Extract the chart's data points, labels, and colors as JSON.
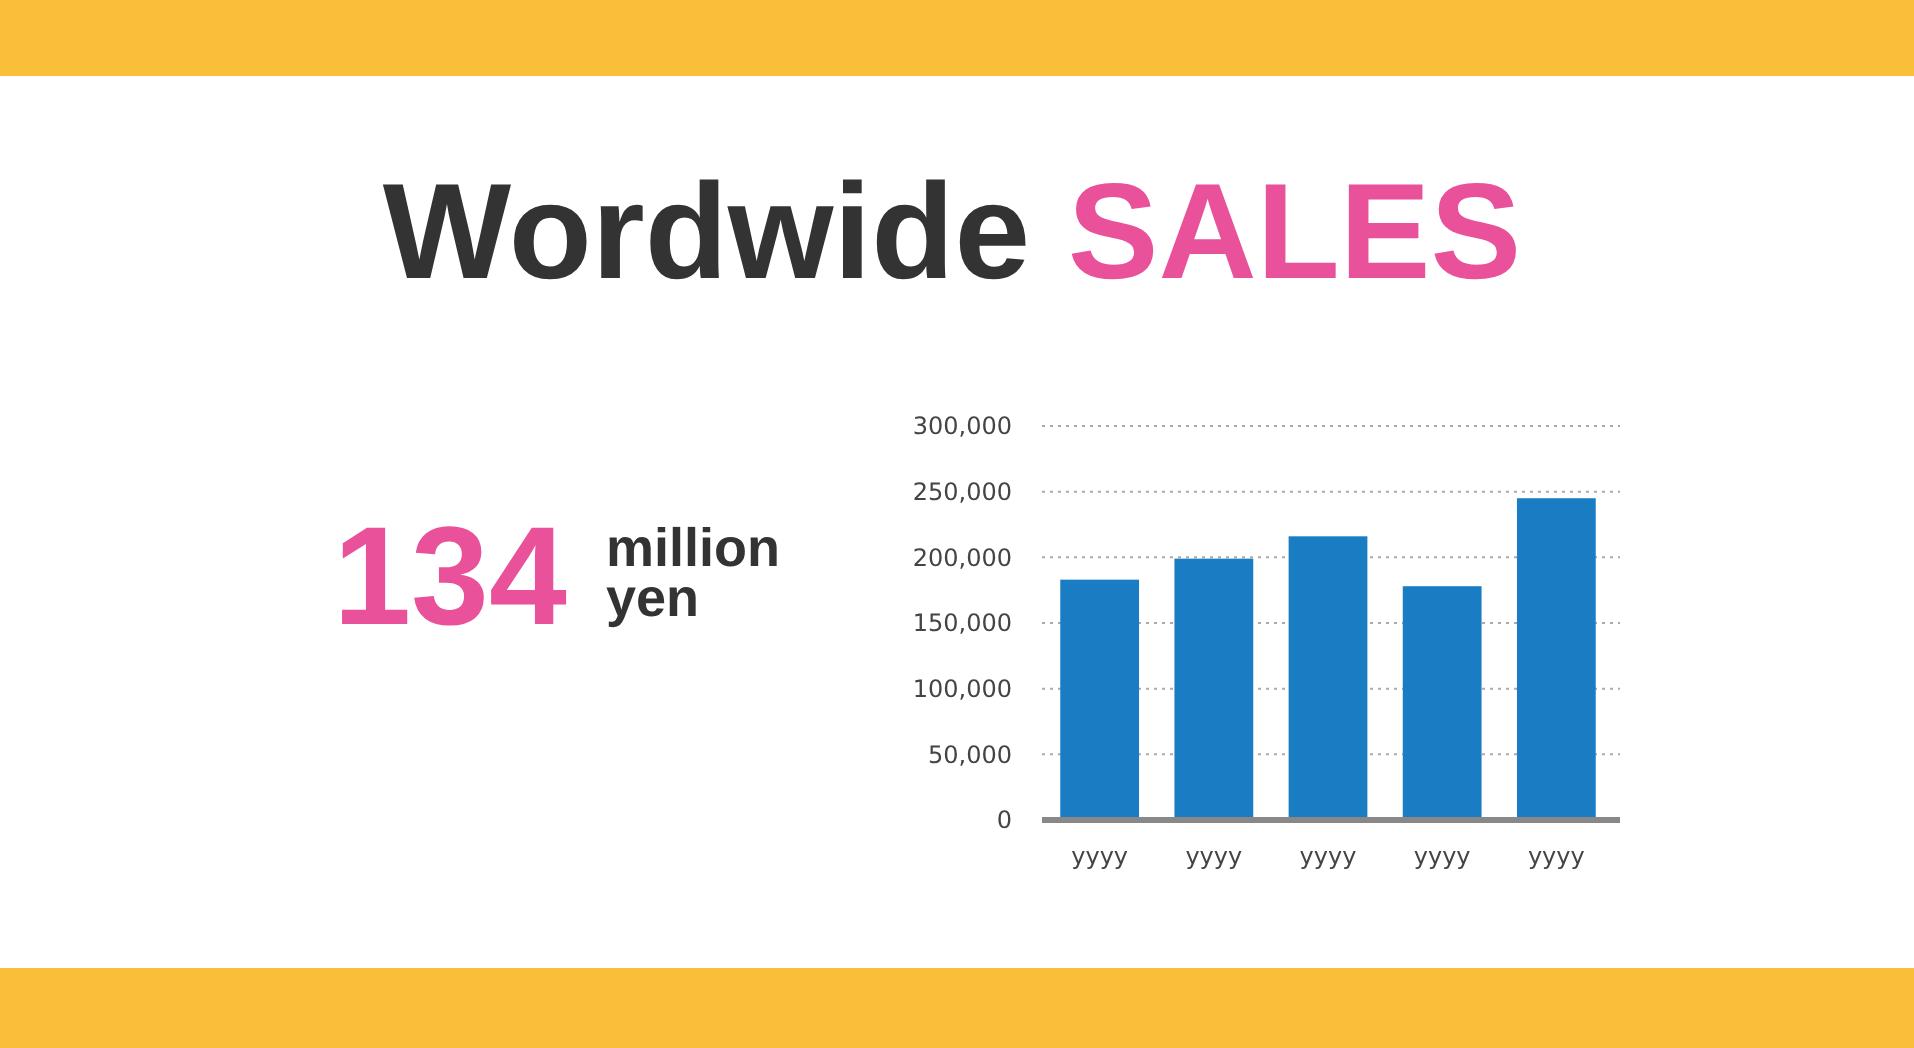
{
  "chart_data": {
    "type": "bar",
    "title": "Wordwide SALES",
    "categories": [
      "yyyy",
      "yyyy",
      "yyyy",
      "yyyy",
      "yyyy"
    ],
    "values": [
      183000,
      199000,
      216000,
      178000,
      245000
    ],
    "color": "#1a7dc4",
    "ylim": [
      0,
      300000
    ],
    "yticks": [
      0,
      {
        "value": 50000,
        "label": "50,000"
      },
      {
        "value": 100000,
        "label": "100,000"
      },
      {
        "value": 150000,
        "label": "150,000"
      },
      {
        "value": 200000,
        "label": "200,000"
      },
      {
        "value": 250000,
        "label": "250,000"
      },
      {
        "value": 300000,
        "label": "300,000"
      }
    ],
    "grid": "y",
    "annotations": [
      "134",
      "million",
      "yen"
    ]
  }
}
